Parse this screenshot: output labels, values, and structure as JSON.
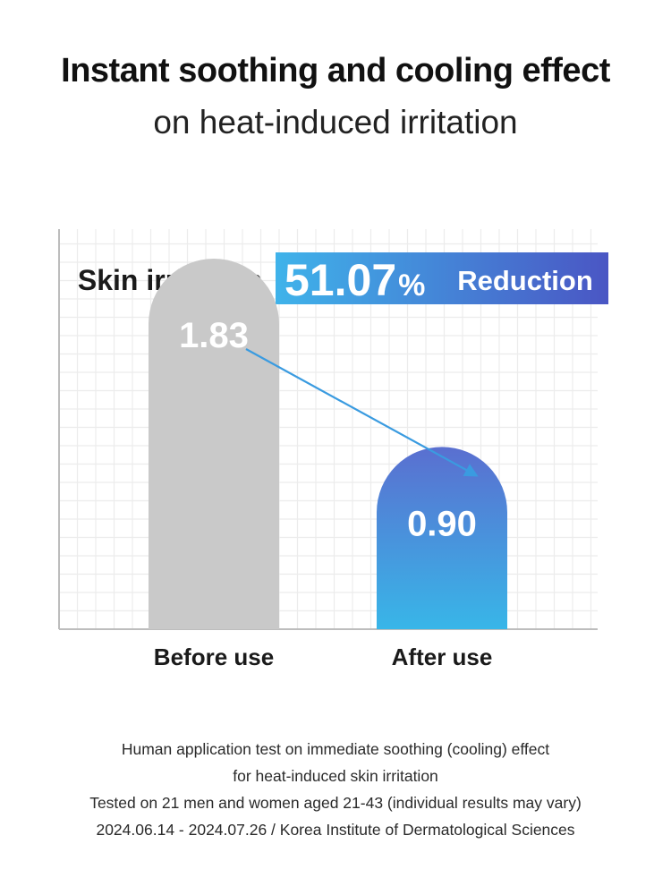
{
  "header": {
    "title": "Instant soothing and cooling effect",
    "subtitle": "on heat-induced irritation"
  },
  "badge": {
    "label": "Skin irritation",
    "percent_number": "51.07",
    "percent_sign": "%",
    "reduction_text": "Reduction"
  },
  "chart_data": {
    "type": "bar",
    "categories": [
      "Before use",
      "After use"
    ],
    "values": [
      1.83,
      0.9
    ],
    "value_labels": [
      "1.83",
      "0.90"
    ],
    "title": "",
    "xlabel": "",
    "ylabel": "",
    "ylim": [
      0,
      2.4
    ],
    "grid": true,
    "colors": {
      "before_bar": "#c9c9c9",
      "after_bar_top": "#5a6fd0",
      "after_bar_bottom": "#38b6e8",
      "arrow": "#3a9be0",
      "grid": "#ececec",
      "badge_left": "#3fb3ea",
      "badge_right": "#4a56c4"
    }
  },
  "footnote": {
    "lines": [
      "Human application test on immediate soothing (cooling) effect",
      "for heat-induced skin irritation",
      "Tested on 21 men and women aged 21-43 (individual results may vary)",
      "2024.06.14 - 2024.07.26 / Korea Institute of Dermatological Sciences"
    ]
  }
}
